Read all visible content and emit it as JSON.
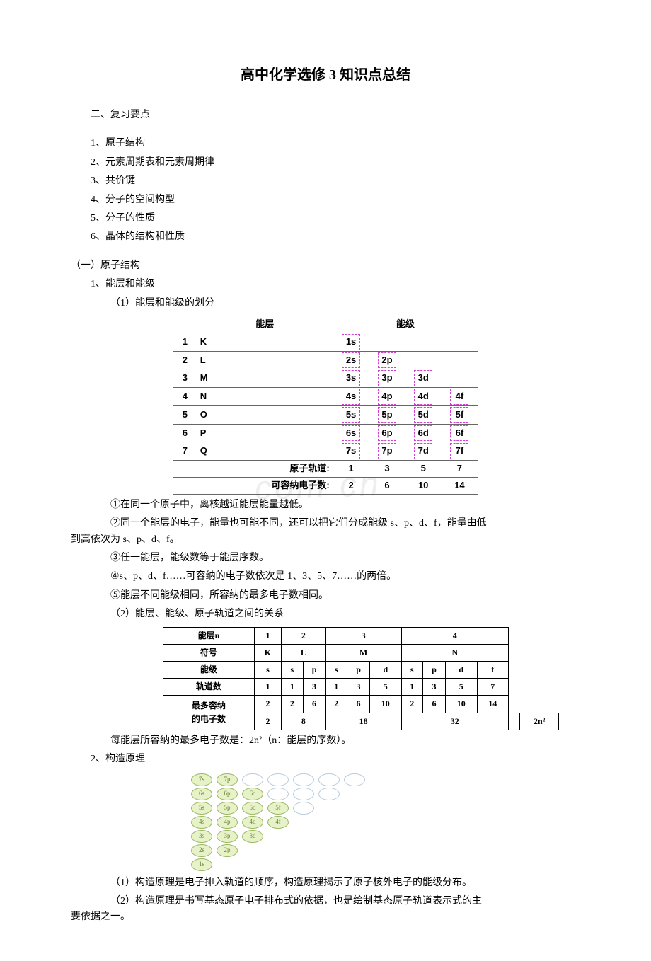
{
  "title": "高中化学选修 3 知识点总结",
  "sec2_header": "二、复习要点",
  "outline": [
    "1、原子结构",
    "2、元素周期表和元素周期律",
    "3、共价键",
    "4、分子的空间构型",
    "5、分子的性质",
    "6、晶体的结构和性质"
  ],
  "part1": {
    "head": "（一）原子结构",
    "item1": "1、能层和能级",
    "sub1": "（1）能层和能级的划分",
    "notes": [
      "①在同一个原子中，离核越近能层能量越低。",
      "②同一个能层的电子，能量也可能不同，还可以把它们分成能级 s、p、d、f，能量由低到高依次为 s、p、d、f。",
      "③任一能层，能级数等于能层序数。",
      "④s、p、d、f……可容纳的电子数依次是 1、3、5、7……的两倍。",
      "⑤能层不同能级相同，所容纳的最多电子数相同。"
    ],
    "sub2": "（2）能层、能级、原子轨道之间的关系",
    "cap2": "每能层所容纳的最多电子数是：2n²（n：能层的序数）。",
    "item2": "2、构造原理",
    "build_notes": [
      "（1）构造原理是电子排入轨道的顺序，构造原理揭示了原子核外电子的能级分布。",
      "（2）构造原理是书写基态原子电子排布式的依据，也是绘制基态原子轨道表示式的主要依据之一。"
    ]
  },
  "table1": {
    "head_shell": "能层",
    "head_level": "能级",
    "rows": [
      {
        "n": "1",
        "sym": "K",
        "s": "1s",
        "p": "",
        "d": "",
        "f": ""
      },
      {
        "n": "2",
        "sym": "L",
        "s": "2s",
        "p": "2p",
        "d": "",
        "f": ""
      },
      {
        "n": "3",
        "sym": "M",
        "s": "3s",
        "p": "3p",
        "d": "3d",
        "f": ""
      },
      {
        "n": "4",
        "sym": "N",
        "s": "4s",
        "p": "4p",
        "d": "4d",
        "f": "4f"
      },
      {
        "n": "5",
        "sym": "O",
        "s": "5s",
        "p": "5p",
        "d": "5d",
        "f": "5f"
      },
      {
        "n": "6",
        "sym": "P",
        "s": "6s",
        "p": "6p",
        "d": "6d",
        "f": "6f"
      },
      {
        "n": "7",
        "sym": "Q",
        "s": "7s",
        "p": "7p",
        "d": "7d",
        "f": "7f"
      }
    ],
    "foot1_label": "原子轨道:",
    "foot1": [
      "1",
      "3",
      "5",
      "7"
    ],
    "foot2_label": "可容纳电子数:",
    "foot2": [
      "2",
      "6",
      "10",
      "14"
    ]
  },
  "table2": {
    "headers": {
      "r1": "能层n",
      "r2": "符号",
      "r3": "能级",
      "r4": "轨道数",
      "r5a": "最多容纳",
      "r5b": "的电子数"
    },
    "shells": [
      {
        "n": "1",
        "sym": "K",
        "levels": [
          {
            "l": "s",
            "orb": "1",
            "e": "2"
          }
        ],
        "total": "2"
      },
      {
        "n": "2",
        "sym": "L",
        "levels": [
          {
            "l": "s",
            "orb": "1",
            "e": "2"
          },
          {
            "l": "p",
            "orb": "3",
            "e": "6"
          }
        ],
        "total": "8"
      },
      {
        "n": "3",
        "sym": "M",
        "levels": [
          {
            "l": "s",
            "orb": "1",
            "e": "2"
          },
          {
            "l": "p",
            "orb": "3",
            "e": "6"
          },
          {
            "l": "d",
            "orb": "5",
            "e": "10"
          }
        ],
        "total": "18"
      },
      {
        "n": "4",
        "sym": "N",
        "levels": [
          {
            "l": "s",
            "orb": "1",
            "e": "2"
          },
          {
            "l": "p",
            "orb": "3",
            "e": "6"
          },
          {
            "l": "d",
            "orb": "5",
            "e": "10"
          },
          {
            "l": "f",
            "orb": "7",
            "e": "14"
          }
        ],
        "total": "32"
      }
    ],
    "formula": "2n²"
  },
  "aufbau": {
    "rows": [
      [
        {
          "t": "7s",
          "f": true
        },
        {
          "t": "7p",
          "f": true
        },
        {
          "t": "",
          "f": false
        },
        {
          "t": "",
          "f": false
        },
        {
          "t": "",
          "f": false
        },
        {
          "t": "",
          "f": false
        },
        {
          "t": "",
          "f": false
        }
      ],
      [
        {
          "t": "6s",
          "f": true
        },
        {
          "t": "6p",
          "f": true
        },
        {
          "t": "6d",
          "f": true
        },
        {
          "t": "",
          "f": false
        },
        {
          "t": "",
          "f": false
        },
        {
          "t": "",
          "f": false
        }
      ],
      [
        {
          "t": "5s",
          "f": true
        },
        {
          "t": "5p",
          "f": true
        },
        {
          "t": "5d",
          "f": true
        },
        {
          "t": "5f",
          "f": true
        },
        {
          "t": "",
          "f": false
        }
      ],
      [
        {
          "t": "4s",
          "f": true
        },
        {
          "t": "4p",
          "f": true
        },
        {
          "t": "4d",
          "f": true
        },
        {
          "t": "4f",
          "f": true
        }
      ],
      [
        {
          "t": "3s",
          "f": true
        },
        {
          "t": "3p",
          "f": true
        },
        {
          "t": "3d",
          "f": true
        }
      ],
      [
        {
          "t": "2s",
          "f": true
        },
        {
          "t": "2p",
          "f": true
        }
      ],
      [
        {
          "t": "1s",
          "f": true
        }
      ]
    ]
  },
  "watermark": "com cn"
}
